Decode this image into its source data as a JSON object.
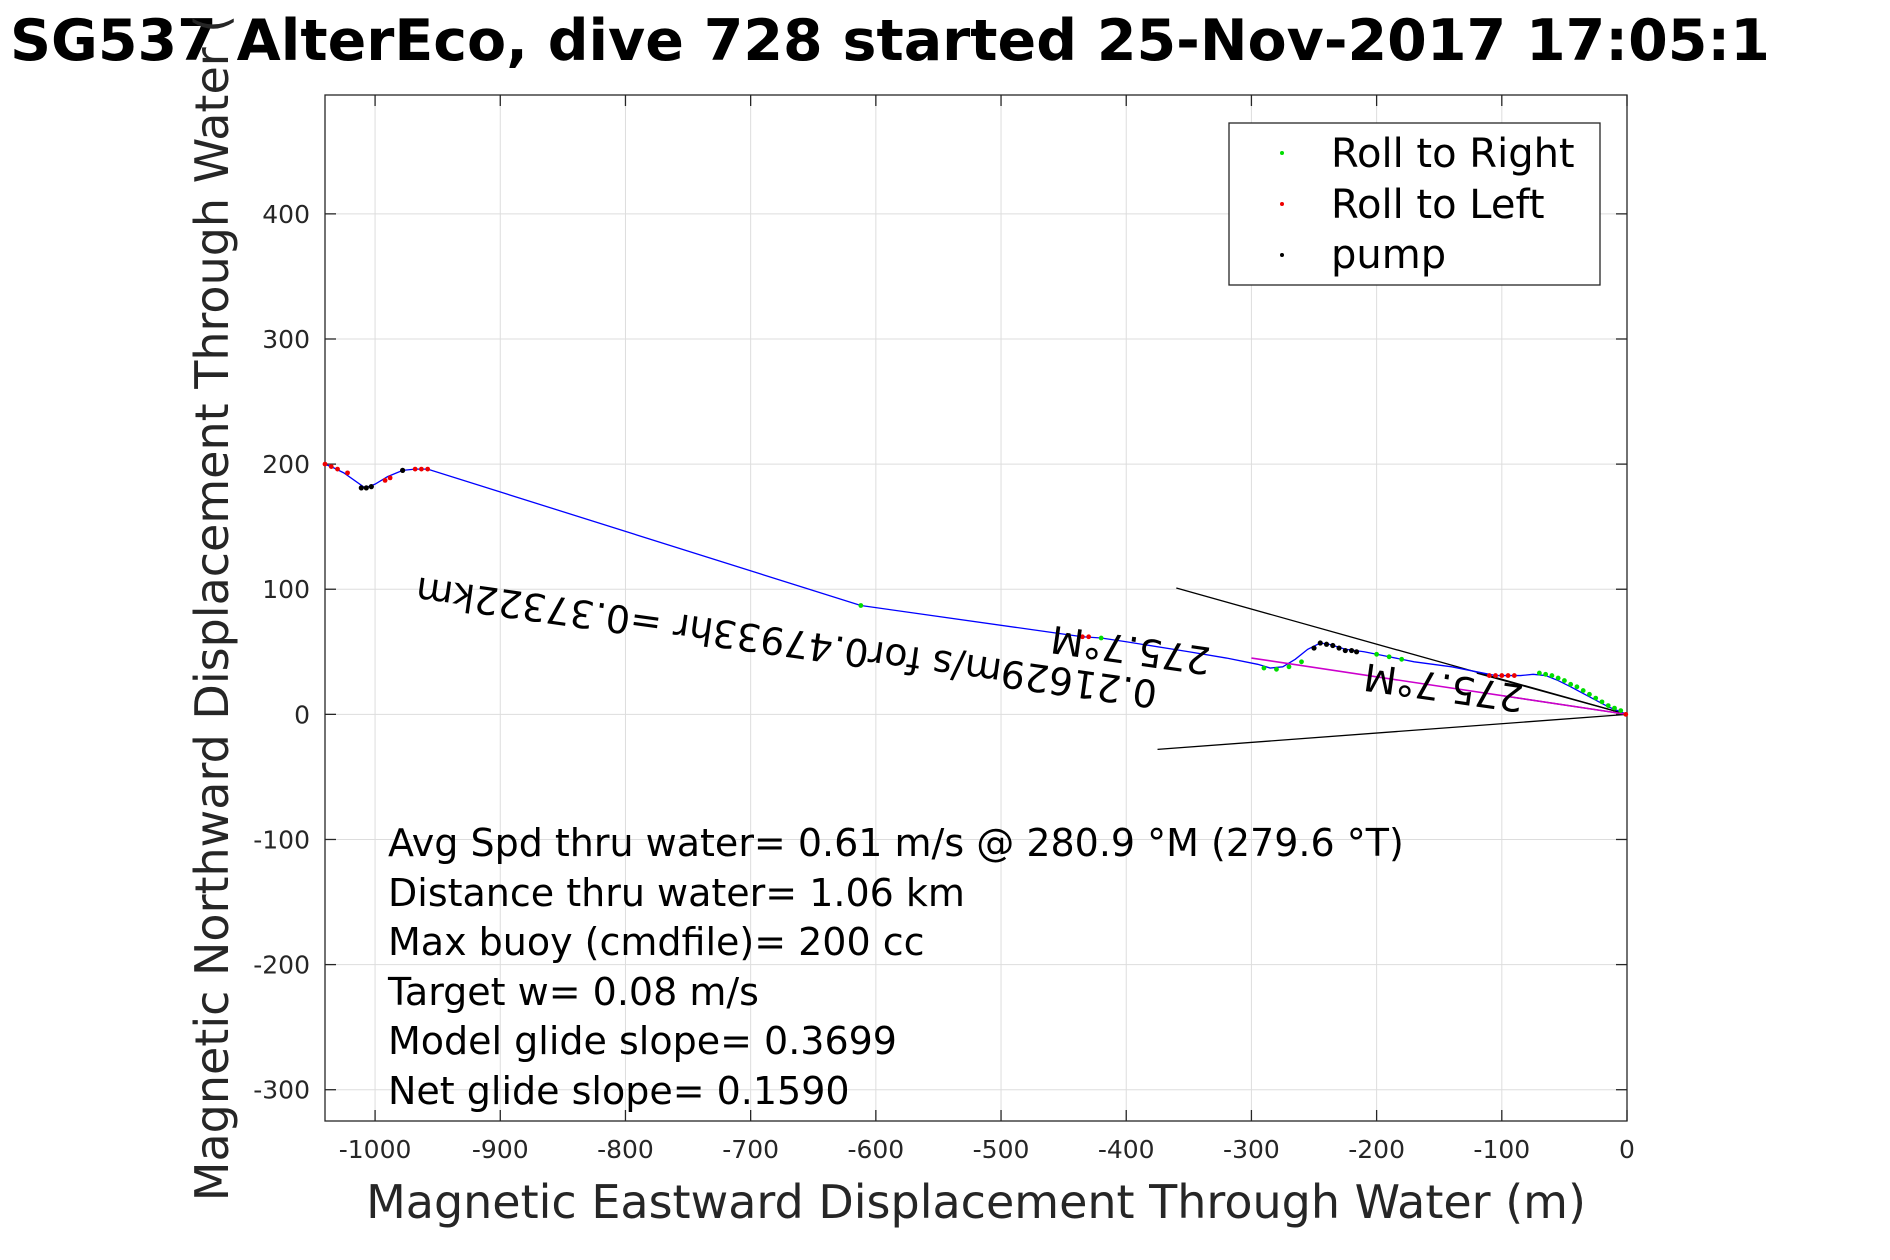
{
  "chart_data": {
    "type": "scatter",
    "title": "SG537 AlterEco, dive 728 started 25-Nov-2017 17:05:1",
    "xlabel": "Magnetic Eastward Displacement Through Water (m)",
    "ylabel": "Magnetic Northward Displacement Through Water (",
    "xlim": [
      -1040,
      0
    ],
    "ylim": [
      -325,
      495
    ],
    "xticks": [
      "-1000",
      "-900",
      "-800",
      "-700",
      "-600",
      "-500",
      "-400",
      "-300",
      "-200",
      "-100",
      "0"
    ],
    "yticks": [
      "-300",
      "-200",
      "-100",
      "0",
      "100",
      "200",
      "300",
      "400"
    ],
    "grid": true,
    "legend_position": "top-right",
    "legend": [
      {
        "label": "Roll to Right",
        "color": "#00dd00"
      },
      {
        "label": "Roll to Left",
        "color": "#ee0000"
      },
      {
        "label": "pump",
        "color": "#000000"
      }
    ],
    "track": {
      "color": "#0000ff",
      "points": [
        [
          0,
          0
        ],
        [
          -15,
          6
        ],
        [
          -30,
          14
        ],
        [
          -45,
          22
        ],
        [
          -55,
          27
        ],
        [
          -65,
          31
        ],
        [
          -75,
          32
        ],
        [
          -85,
          31
        ],
        [
          -95,
          31
        ],
        [
          -105,
          31
        ],
        [
          -115,
          33
        ],
        [
          -140,
          38
        ],
        [
          -170,
          42
        ],
        [
          -195,
          47
        ],
        [
          -210,
          50
        ],
        [
          -225,
          52
        ],
        [
          -238,
          56
        ],
        [
          -245,
          57
        ],
        [
          -255,
          52
        ],
        [
          -265,
          44
        ],
        [
          -275,
          38
        ],
        [
          -285,
          37
        ],
        [
          -295,
          40
        ],
        [
          -320,
          45
        ],
        [
          -350,
          50
        ],
        [
          -400,
          58
        ],
        [
          -420,
          61
        ],
        [
          -435,
          62
        ],
        [
          -612,
          87
        ],
        [
          -958,
          196
        ],
        [
          -968,
          196
        ],
        [
          -978,
          195
        ],
        [
          -990,
          190
        ],
        [
          -1000,
          184
        ],
        [
          -1008,
          181
        ],
        [
          -1025,
          193
        ],
        [
          -1033,
          197
        ],
        [
          -1040,
          200
        ]
      ]
    },
    "roll_right": [
      [
        -5,
        3
      ],
      [
        -10,
        5
      ],
      [
        -15,
        7
      ],
      [
        -20,
        10
      ],
      [
        -25,
        13
      ],
      [
        -30,
        16
      ],
      [
        -35,
        19
      ],
      [
        -40,
        22
      ],
      [
        -45,
        24
      ],
      [
        -50,
        27
      ],
      [
        -55,
        29
      ],
      [
        -60,
        31
      ],
      [
        -65,
        32
      ],
      [
        -70,
        33
      ],
      [
        -180,
        44
      ],
      [
        -190,
        46
      ],
      [
        -200,
        48
      ],
      [
        -260,
        42
      ],
      [
        -270,
        38
      ],
      [
        -280,
        36
      ],
      [
        -290,
        37
      ],
      [
        -420,
        61
      ],
      [
        -612,
        87
      ]
    ],
    "roll_left": [
      [
        -1,
        0
      ],
      [
        -90,
        31
      ],
      [
        -95,
        31
      ],
      [
        -100,
        31
      ],
      [
        -105,
        31
      ],
      [
        -110,
        31
      ],
      [
        -430,
        62
      ],
      [
        -435,
        62
      ],
      [
        -958,
        196
      ],
      [
        -963,
        196
      ],
      [
        -968,
        196
      ],
      [
        -988,
        189
      ],
      [
        -992,
        187
      ],
      [
        -1022,
        193
      ],
      [
        -1030,
        196
      ],
      [
        -1035,
        198
      ],
      [
        -1040,
        200
      ]
    ],
    "pump": [
      [
        -216,
        50
      ],
      [
        -220,
        51
      ],
      [
        -225,
        51
      ],
      [
        -230,
        53
      ],
      [
        -235,
        55
      ],
      [
        -240,
        56
      ],
      [
        -245,
        57
      ],
      [
        -250,
        53
      ],
      [
        -978,
        195
      ],
      [
        -1003,
        182
      ],
      [
        -1007,
        181
      ],
      [
        -1011,
        181
      ]
    ],
    "magenta_line": {
      "color": "#cc00cc",
      "points": [
        [
          0,
          0
        ],
        [
          -300,
          45
        ]
      ]
    },
    "fan_lines": [
      {
        "color": "#000000",
        "points": [
          [
            0,
            0
          ],
          [
            -360,
            101
          ]
        ]
      },
      {
        "color": "#000000",
        "points": [
          [
            0,
            0
          ],
          [
            -375,
            -28
          ]
        ]
      },
      {
        "color": "#000000",
        "points": [
          [
            0,
            0
          ],
          [
            -120,
            33
          ]
        ]
      },
      {
        "color": "#000000",
        "points": [
          [
            0,
            0
          ],
          [
            -100,
            15
          ]
        ]
      }
    ],
    "rotated_annotations": [
      "0.21629m/s for0.47933hr =0.37322km",
      "275.7°M",
      "275.7°M"
    ],
    "stats": [
      "Avg Spd thru water=  0.61 m/s @ 280.9 °M (279.6 °T)",
      "Distance thru water=  1.06 km",
      "Max buoy (cmdfile)= 200 cc",
      "Target w= 0.08 m/s",
      "Model glide slope= 0.3699",
      "Net glide slope= 0.1590"
    ]
  }
}
